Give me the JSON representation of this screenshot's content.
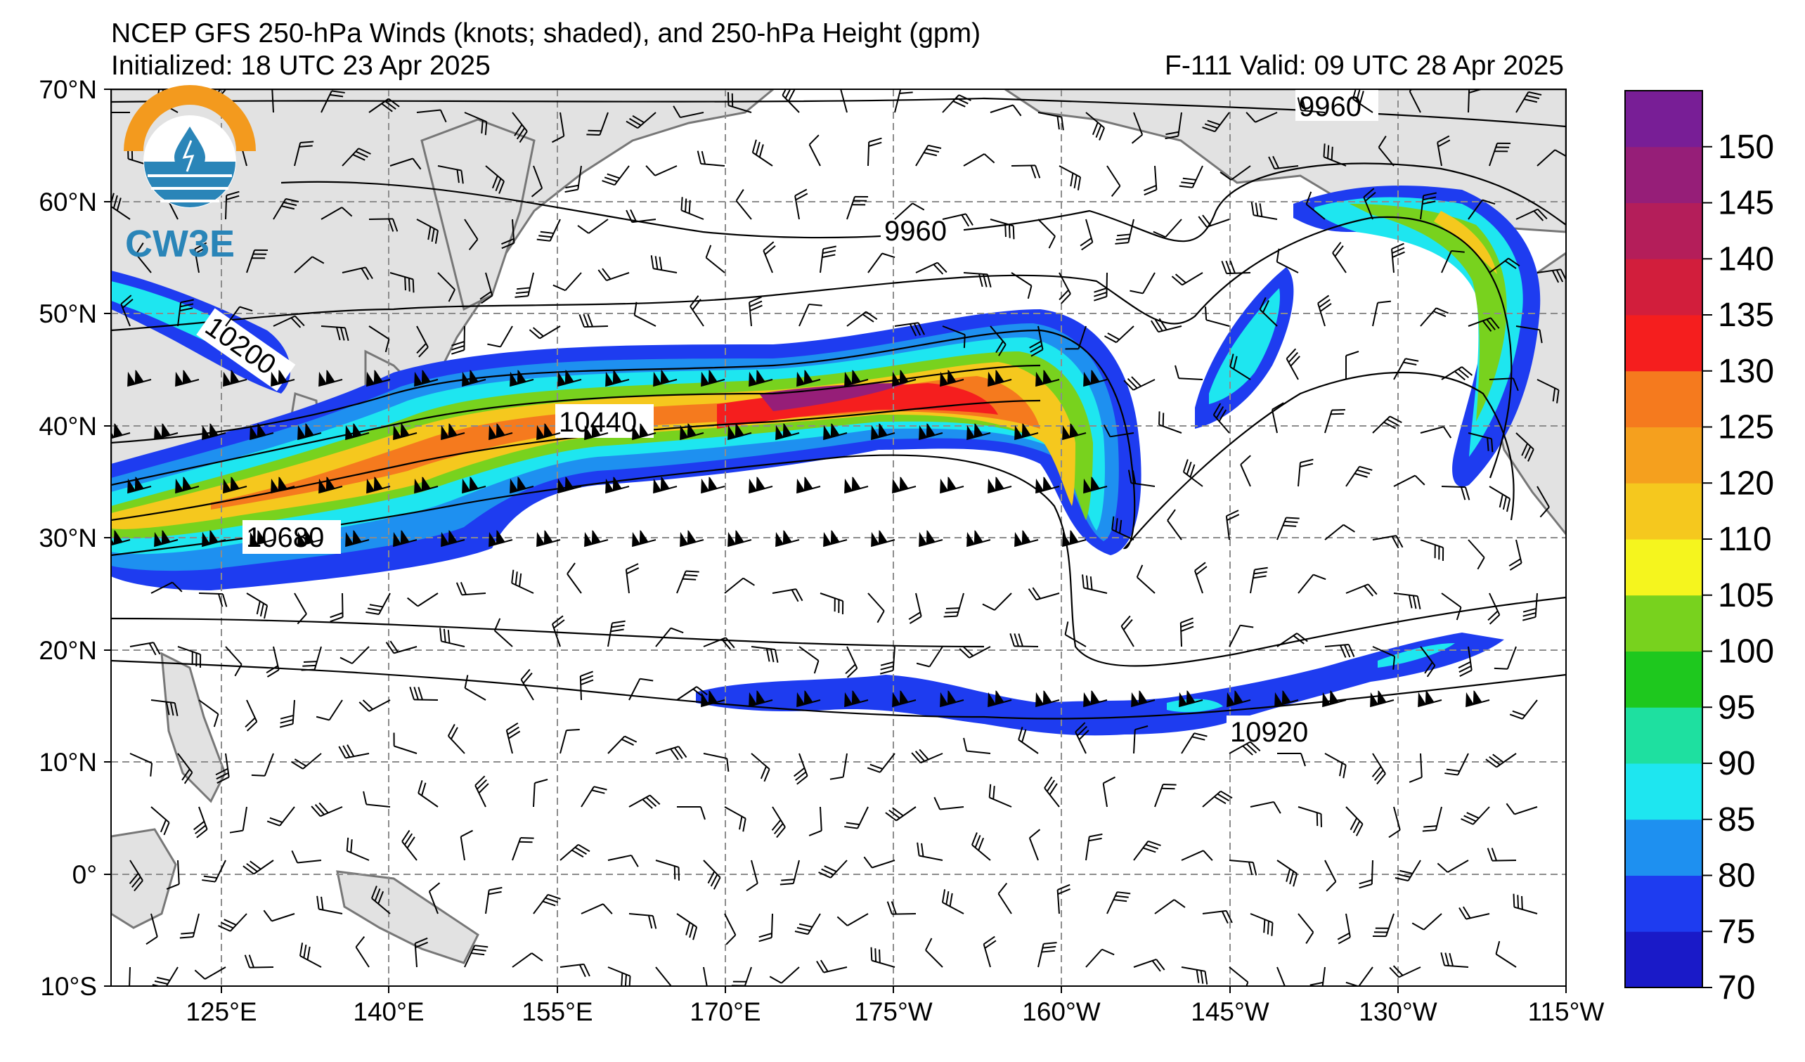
{
  "header": {
    "title": "NCEP GFS 250-hPa Winds (knots; shaded), and 250-hPa Height (gpm)",
    "initialized": "Initialized: 18 UTC 23 Apr 2025",
    "valid": "F-111  Valid: 09 UTC 28 Apr 2025"
  },
  "logo": {
    "text": "CW3E"
  },
  "axes": {
    "lat_ticks": [
      "70°N",
      "60°N",
      "50°N",
      "40°N",
      "30°N",
      "20°N",
      "10°N",
      "0°",
      "10°S"
    ],
    "lon_ticks": [
      "125°E",
      "140°E",
      "155°E",
      "170°E",
      "175°W",
      "160°W",
      "145°W",
      "130°W",
      "115°W"
    ]
  },
  "contours": {
    "labels": [
      "9960",
      "9960",
      "10200",
      "10440",
      "10680",
      "10920"
    ]
  },
  "colorbar": {
    "ticks": [
      "70",
      "75",
      "80",
      "85",
      "90",
      "95",
      "100",
      "105",
      "110",
      "120",
      "125",
      "130",
      "135",
      "140",
      "145",
      "150"
    ],
    "colors": [
      "#1a1ac8",
      "#1e3cf0",
      "#1e90f0",
      "#1ee6f0",
      "#1ee0a0",
      "#1ec81e",
      "#78d21e",
      "#f5f51e",
      "#f5c81e",
      "#f5a01e",
      "#f57a1e",
      "#f51e1e",
      "#d21e3c",
      "#b41e5a",
      "#961e78",
      "#781e96"
    ]
  }
}
